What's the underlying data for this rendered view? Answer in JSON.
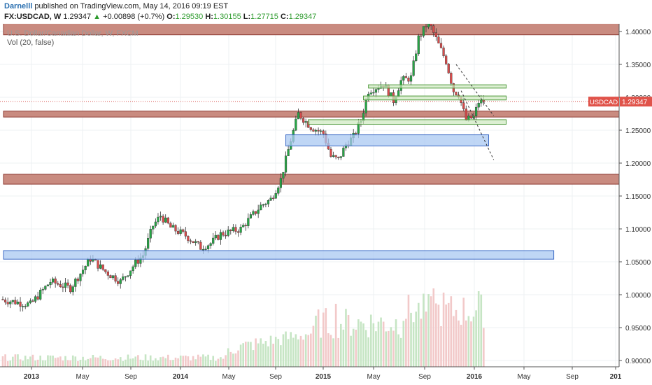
{
  "header": {
    "author": "Darnelll",
    "published_text": "published on TradingView.com, May 14, 2016 09:19 EST",
    "symbol": "FX:USDCAD, W",
    "last": "1.29347",
    "change_arrow": "▲",
    "change": "+0.00898 (+0.7%)",
    "o_label": "O:",
    "o": "1.29530",
    "h_label": "H:",
    "h": "1.30155",
    "l_label": "L:",
    "l": "1.27715",
    "c_label": "C:",
    "c": "1.29347"
  },
  "watermark": "U.S. Dollar/Canadian Dollar, W, FXCM",
  "indicator_label": "Vol (20, false)",
  "price_tag": {
    "label": "USDCAD",
    "value": "1.29347"
  },
  "colors": {
    "up": "#26a645",
    "down": "#d94a4a",
    "red_zone_fill": "#c98b80",
    "red_zone_stroke": "#8e3b33",
    "blue_zone_fill": "#aac8f2",
    "blue_zone_stroke": "#3d6bc6",
    "green_zone_fill": "#cde8bf",
    "green_zone_stroke": "#4f9a3c",
    "tag": "#e0534a"
  },
  "chart_data": {
    "type": "candlestick",
    "y_ticks": [
      "1.40000",
      "1.35000",
      "1.30000",
      "1.25000",
      "1.20000",
      "1.15000",
      "1.10000",
      "1.05000",
      "1.00000",
      "0.95000",
      "0.90000"
    ],
    "x_ticks": [
      "2013",
      "May",
      "Sep",
      "2014",
      "May",
      "Sep",
      "2015",
      "May",
      "Sep",
      "2016",
      "May",
      "Sep",
      "201"
    ],
    "ylim": [
      0.885,
      1.415
    ],
    "anchors": [
      {
        "t": 0,
        "p": 0.993
      },
      {
        "t": 12,
        "p": 0.985
      },
      {
        "t": 20,
        "p": 1.02
      },
      {
        "t": 28,
        "p": 1.01
      },
      {
        "t": 36,
        "p": 1.055
      },
      {
        "t": 42,
        "p": 1.035
      },
      {
        "t": 48,
        "p": 1.02
      },
      {
        "t": 54,
        "p": 1.048
      },
      {
        "t": 57,
        "p": 1.06
      },
      {
        "t": 61,
        "p": 1.105
      },
      {
        "t": 64,
        "p": 1.12
      },
      {
        "t": 68,
        "p": 1.102
      },
      {
        "t": 74,
        "p": 1.09
      },
      {
        "t": 80,
        "p": 1.072
      },
      {
        "t": 84,
        "p": 1.078
      },
      {
        "t": 88,
        "p": 1.092
      },
      {
        "t": 96,
        "p": 1.1
      },
      {
        "t": 104,
        "p": 1.135
      },
      {
        "t": 108,
        "p": 1.145
      },
      {
        "t": 112,
        "p": 1.175
      },
      {
        "t": 116,
        "p": 1.235
      },
      {
        "t": 119,
        "p": 1.275
      },
      {
        "t": 124,
        "p": 1.255
      },
      {
        "t": 129,
        "p": 1.245
      },
      {
        "t": 132,
        "p": 1.21
      },
      {
        "t": 135,
        "p": 1.205
      },
      {
        "t": 138,
        "p": 1.228
      },
      {
        "t": 141,
        "p": 1.24
      },
      {
        "t": 144,
        "p": 1.265
      },
      {
        "t": 147,
        "p": 1.31
      },
      {
        "t": 150,
        "p": 1.315
      },
      {
        "t": 153,
        "p": 1.32
      },
      {
        "t": 157,
        "p": 1.295
      },
      {
        "t": 160,
        "p": 1.325
      },
      {
        "t": 164,
        "p": 1.33
      },
      {
        "t": 167,
        "p": 1.39
      },
      {
        "t": 171,
        "p": 1.415
      },
      {
        "t": 175,
        "p": 1.38
      },
      {
        "t": 178,
        "p": 1.355
      },
      {
        "t": 181,
        "p": 1.31
      },
      {
        "t": 183,
        "p": 1.305
      },
      {
        "t": 186,
        "p": 1.265
      },
      {
        "t": 189,
        "p": 1.27
      },
      {
        "t": 191,
        "p": 1.293
      }
    ],
    "red_zones": [
      [
        1.395,
        1.413
      ],
      [
        1.27,
        1.279
      ],
      [
        1.168,
        1.183
      ]
    ],
    "blue_zones": [
      {
        "t0": 113,
        "t1": 194,
        "lo": 1.226,
        "hi": 1.243
      },
      {
        "t0": 0,
        "t1": 220,
        "lo": 1.054,
        "hi": 1.067
      }
    ],
    "green_zones": [
      {
        "t0": 146,
        "t1": 201,
        "lo": 1.314,
        "hi": 1.319
      },
      {
        "t0": 144,
        "t1": 201,
        "lo": 1.296,
        "hi": 1.302
      },
      {
        "t0": 122,
        "t1": 201,
        "lo": 1.259,
        "hi": 1.266
      }
    ],
    "trendlines": [
      {
        "t0": 181,
        "p0": 1.35,
        "t1": 196,
        "p1": 1.272
      },
      {
        "t0": 183,
        "p0": 1.31,
        "t1": 196,
        "p1": 1.205
      }
    ],
    "current": 1.29347
  }
}
